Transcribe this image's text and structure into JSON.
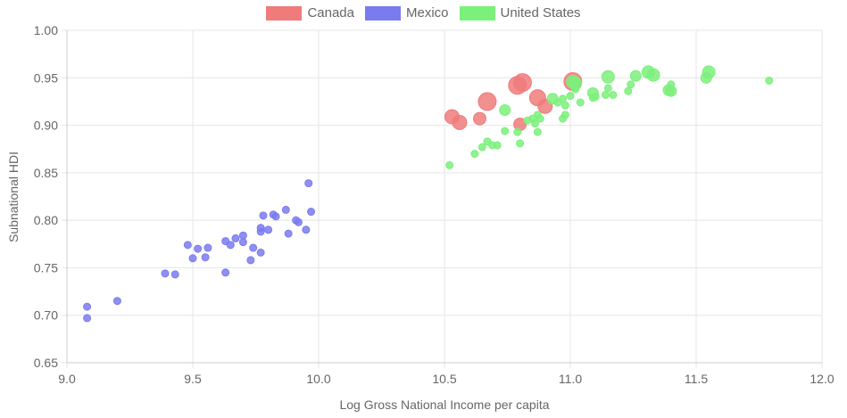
{
  "chart_data": {
    "type": "scatter",
    "title": "",
    "xlabel": "Log Gross National Income per capita",
    "ylabel": "Subnational HDI",
    "xlim": [
      9.0,
      12.0
    ],
    "ylim": [
      0.65,
      1.0
    ],
    "x_ticks": [
      "9.0",
      "9.5",
      "10.0",
      "10.5",
      "11.0",
      "11.5",
      "12.0"
    ],
    "y_ticks": [
      "0.65",
      "0.70",
      "0.75",
      "0.80",
      "0.85",
      "0.90",
      "0.95",
      "1.00"
    ],
    "grid": true,
    "legend_position": "top-center",
    "series": [
      {
        "name": "Canada",
        "color": "#f07b7b",
        "points": [
          {
            "x": 10.53,
            "y": 0.909,
            "r": 8
          },
          {
            "x": 10.56,
            "y": 0.903,
            "r": 8
          },
          {
            "x": 10.64,
            "y": 0.907,
            "r": 7
          },
          {
            "x": 10.67,
            "y": 0.925,
            "r": 10
          },
          {
            "x": 10.79,
            "y": 0.942,
            "r": 10
          },
          {
            "x": 10.81,
            "y": 0.945,
            "r": 10
          },
          {
            "x": 10.8,
            "y": 0.901,
            "r": 7
          },
          {
            "x": 10.87,
            "y": 0.929,
            "r": 9
          },
          {
            "x": 10.9,
            "y": 0.92,
            "r": 8
          },
          {
            "x": 11.01,
            "y": 0.946,
            "r": 10
          }
        ]
      },
      {
        "name": "Mexico",
        "color": "#7b7bf0",
        "points": [
          {
            "x": 9.08,
            "y": 0.709
          },
          {
            "x": 9.08,
            "y": 0.697
          },
          {
            "x": 9.2,
            "y": 0.715
          },
          {
            "x": 9.39,
            "y": 0.744
          },
          {
            "x": 9.43,
            "y": 0.743
          },
          {
            "x": 9.48,
            "y": 0.774
          },
          {
            "x": 9.5,
            "y": 0.76
          },
          {
            "x": 9.52,
            "y": 0.77
          },
          {
            "x": 9.55,
            "y": 0.761
          },
          {
            "x": 9.56,
            "y": 0.771
          },
          {
            "x": 9.63,
            "y": 0.745
          },
          {
            "x": 9.63,
            "y": 0.778
          },
          {
            "x": 9.65,
            "y": 0.774
          },
          {
            "x": 9.67,
            "y": 0.781
          },
          {
            "x": 9.7,
            "y": 0.784
          },
          {
            "x": 9.7,
            "y": 0.777
          },
          {
            "x": 9.73,
            "y": 0.758
          },
          {
            "x": 9.74,
            "y": 0.771
          },
          {
            "x": 9.77,
            "y": 0.766
          },
          {
            "x": 9.77,
            "y": 0.788
          },
          {
            "x": 9.77,
            "y": 0.792
          },
          {
            "x": 9.78,
            "y": 0.805
          },
          {
            "x": 9.8,
            "y": 0.79
          },
          {
            "x": 9.82,
            "y": 0.806
          },
          {
            "x": 9.83,
            "y": 0.804
          },
          {
            "x": 9.87,
            "y": 0.811
          },
          {
            "x": 9.88,
            "y": 0.786
          },
          {
            "x": 9.91,
            "y": 0.8
          },
          {
            "x": 9.92,
            "y": 0.798
          },
          {
            "x": 9.95,
            "y": 0.79
          },
          {
            "x": 9.96,
            "y": 0.839
          },
          {
            "x": 9.97,
            "y": 0.809
          }
        ]
      },
      {
        "name": "United States",
        "color": "#7bf07b",
        "points": [
          {
            "x": 10.52,
            "y": 0.858
          },
          {
            "x": 10.62,
            "y": 0.87
          },
          {
            "x": 10.65,
            "y": 0.877
          },
          {
            "x": 10.67,
            "y": 0.883
          },
          {
            "x": 10.69,
            "y": 0.879
          },
          {
            "x": 10.71,
            "y": 0.879
          },
          {
            "x": 10.74,
            "y": 0.894
          },
          {
            "x": 10.74,
            "y": 0.916,
            "r": 6
          },
          {
            "x": 10.79,
            "y": 0.893
          },
          {
            "x": 10.8,
            "y": 0.881
          },
          {
            "x": 10.83,
            "y": 0.905
          },
          {
            "x": 10.85,
            "y": 0.907
          },
          {
            "x": 10.86,
            "y": 0.902
          },
          {
            "x": 10.87,
            "y": 0.911
          },
          {
            "x": 10.87,
            "y": 0.893
          },
          {
            "x": 10.88,
            "y": 0.907
          },
          {
            "x": 10.93,
            "y": 0.928,
            "r": 6
          },
          {
            "x": 10.95,
            "y": 0.924
          },
          {
            "x": 10.97,
            "y": 0.928
          },
          {
            "x": 10.97,
            "y": 0.907
          },
          {
            "x": 10.98,
            "y": 0.911
          },
          {
            "x": 10.98,
            "y": 0.921
          },
          {
            "x": 11.0,
            "y": 0.931
          },
          {
            "x": 11.01,
            "y": 0.946,
            "r": 7
          },
          {
            "x": 11.02,
            "y": 0.944,
            "r": 7
          },
          {
            "x": 11.02,
            "y": 0.938
          },
          {
            "x": 11.04,
            "y": 0.924
          },
          {
            "x": 11.09,
            "y": 0.934,
            "r": 6
          },
          {
            "x": 11.09,
            "y": 0.929
          },
          {
            "x": 11.1,
            "y": 0.93
          },
          {
            "x": 11.14,
            "y": 0.932
          },
          {
            "x": 11.15,
            "y": 0.951,
            "r": 7
          },
          {
            "x": 11.15,
            "y": 0.939
          },
          {
            "x": 11.17,
            "y": 0.932
          },
          {
            "x": 11.23,
            "y": 0.936
          },
          {
            "x": 11.24,
            "y": 0.943
          },
          {
            "x": 11.26,
            "y": 0.952,
            "r": 6
          },
          {
            "x": 11.31,
            "y": 0.956,
            "r": 7
          },
          {
            "x": 11.33,
            "y": 0.953,
            "r": 7
          },
          {
            "x": 11.39,
            "y": 0.937,
            "r": 6
          },
          {
            "x": 11.4,
            "y": 0.936,
            "r": 6
          },
          {
            "x": 11.4,
            "y": 0.943
          },
          {
            "x": 11.54,
            "y": 0.95,
            "r": 6
          },
          {
            "x": 11.55,
            "y": 0.956,
            "r": 7
          },
          {
            "x": 11.79,
            "y": 0.947
          }
        ]
      }
    ]
  }
}
